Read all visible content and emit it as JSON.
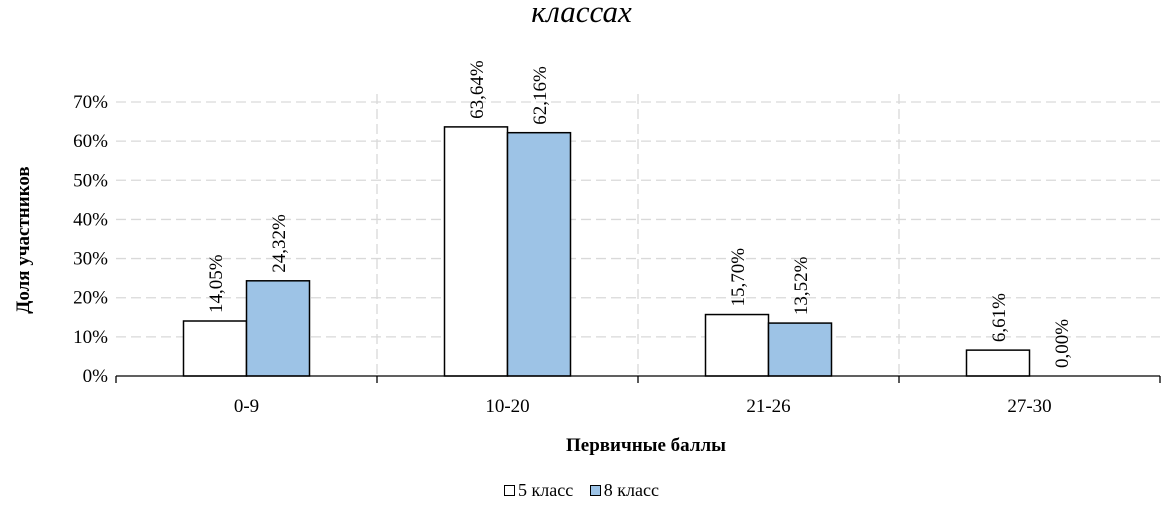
{
  "chart_data": {
    "type": "bar",
    "title": "классах",
    "xlabel": "Первичные баллы",
    "ylabel": "Доля участников",
    "categories": [
      "0-9",
      "10-20",
      "21-26",
      "27-30"
    ],
    "series": [
      {
        "name": "5 класс",
        "color": "#ffffff",
        "values": [
          14.05,
          63.64,
          15.7,
          6.61
        ],
        "labels": [
          "14,05%",
          "63,64%",
          "15,70%",
          "6,61%"
        ]
      },
      {
        "name": "8 класс",
        "color": "#9dc3e6",
        "values": [
          24.32,
          62.16,
          13.52,
          0.0
        ],
        "labels": [
          "24,32%",
          "62,16%",
          "13,52%",
          "0,00%"
        ]
      }
    ],
    "yticks": [
      "0%",
      "10%",
      "20%",
      "30%",
      "40%",
      "50%",
      "60%",
      "70%"
    ],
    "ylim": [
      0,
      70
    ],
    "grid": true,
    "legend_position": "bottom"
  }
}
